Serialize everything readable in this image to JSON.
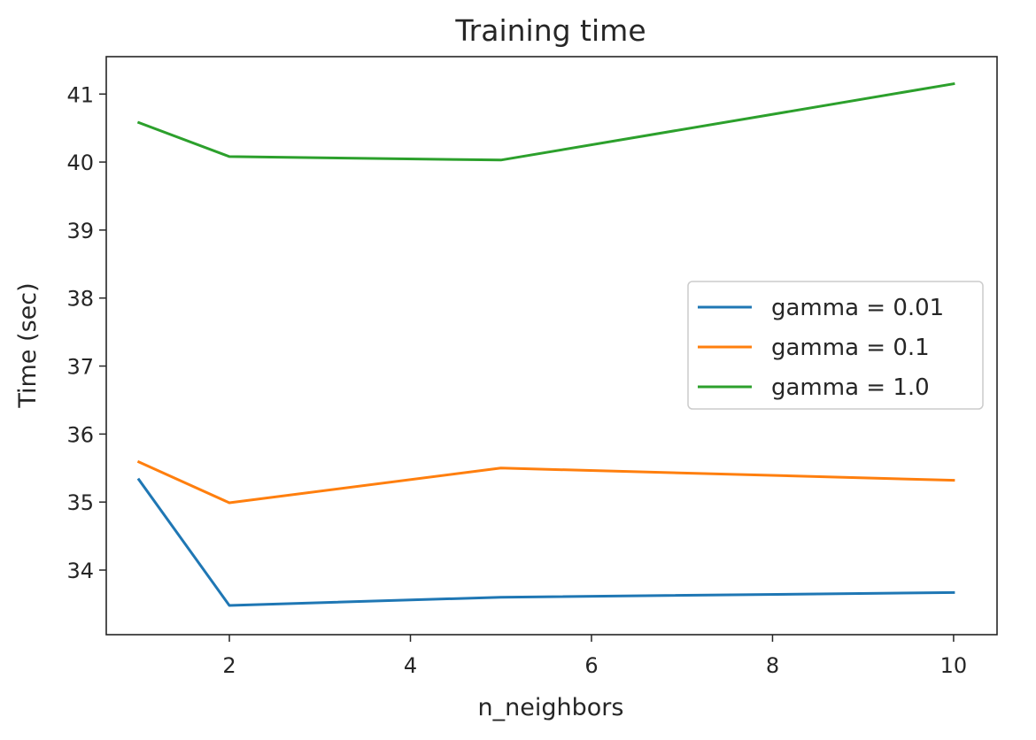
{
  "chart_data": {
    "type": "line",
    "title": "Training time",
    "xlabel": "n_neighbors",
    "ylabel": "Time (sec)",
    "x": [
      1,
      2,
      5,
      10
    ],
    "xlim": [
      0.64,
      10.48
    ],
    "ylim": [
      33.05,
      41.55
    ],
    "xticks": [
      2,
      4,
      6,
      8,
      10
    ],
    "yticks": [
      34,
      35,
      36,
      37,
      38,
      39,
      40,
      41
    ],
    "grid": false,
    "legend_position": "center-right",
    "series": [
      {
        "name": "gamma = 0.01",
        "color": "#1f77b4",
        "values": [
          35.33,
          33.48,
          33.6,
          33.67
        ]
      },
      {
        "name": "gamma = 0.1",
        "color": "#ff7f0e",
        "values": [
          35.59,
          34.99,
          35.5,
          35.32
        ]
      },
      {
        "name": "gamma = 1.0",
        "color": "#2ca02c",
        "values": [
          40.58,
          40.08,
          40.03,
          41.15
        ]
      }
    ]
  }
}
